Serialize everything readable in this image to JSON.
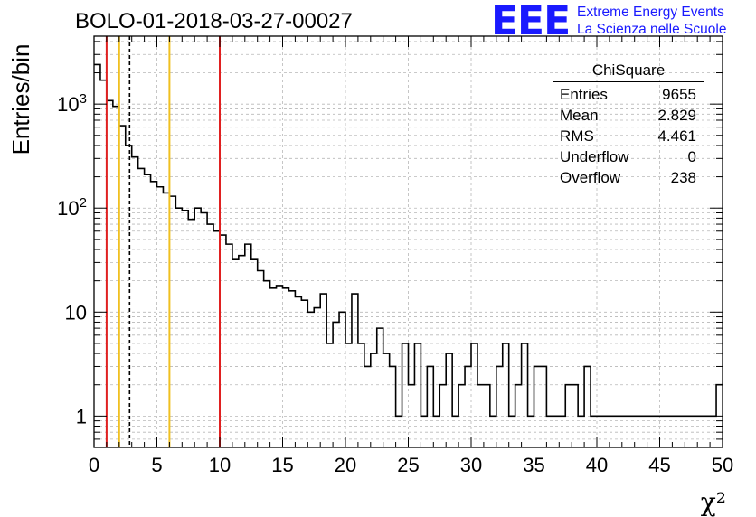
{
  "title": "BOLO-01-2018-03-27-00027",
  "logo": {
    "mark": "EEE",
    "line1": "Extreme Energy Events",
    "line2": "La Scienza nelle Scuole",
    "color": "#1a1aff"
  },
  "stats": {
    "name": "ChiSquare",
    "rows": [
      {
        "label": "Entries",
        "value": "9655"
      },
      {
        "label": "Mean",
        "value": "2.829"
      },
      {
        "label": "RMS",
        "value": "4.461"
      },
      {
        "label": "Underflow",
        "value": "0"
      },
      {
        "label": "Overflow",
        "value": "238"
      }
    ]
  },
  "chart_data": {
    "type": "histogram",
    "title": "BOLO-01-2018-03-27-00027",
    "xlabel": "χ²",
    "ylabel": "Entries/bin",
    "xlim": [
      0,
      50
    ],
    "ylim": [
      0.5,
      4500
    ],
    "yscale": "log",
    "grid": true,
    "bin_width": 0.5,
    "bin_edges_start": 0,
    "x_ticks": [
      0,
      5,
      10,
      15,
      20,
      25,
      30,
      35,
      40,
      45,
      50
    ],
    "y_ticks": [
      {
        "value": 1,
        "label": "1"
      },
      {
        "value": 10,
        "label": "10"
      },
      {
        "value": 100,
        "label": "10²"
      },
      {
        "value": 1000,
        "label": "10³"
      }
    ],
    "counts": [
      2400,
      1700,
      1080,
      950,
      620,
      400,
      310,
      240,
      210,
      180,
      160,
      140,
      130,
      100,
      95,
      78,
      100,
      90,
      70,
      60,
      55,
      45,
      32,
      35,
      45,
      32,
      25,
      20,
      17,
      18,
      17,
      16,
      14,
      13,
      10,
      11,
      15,
      5,
      8,
      10,
      5,
      15,
      5,
      3,
      4,
      7,
      4,
      3,
      1,
      5,
      2,
      5,
      1,
      3,
      1,
      2,
      4,
      1,
      2,
      3,
      5,
      2,
      2,
      1,
      3,
      5,
      1,
      2,
      5,
      1,
      3,
      3,
      1,
      1,
      1,
      2,
      2,
      1,
      3,
      1,
      1,
      1,
      1,
      1,
      1,
      1,
      1,
      1,
      1,
      1,
      1,
      1,
      1,
      1,
      1,
      1,
      1,
      1,
      1,
      2
    ],
    "vertical_lines": [
      {
        "x": 1,
        "color": "#e02020",
        "style": "solid"
      },
      {
        "x": 2,
        "color": "#f0c020",
        "style": "solid"
      },
      {
        "x": 2.829,
        "color": "#000000",
        "style": "dashed"
      },
      {
        "x": 6,
        "color": "#f0c020",
        "style": "solid"
      },
      {
        "x": 10,
        "color": "#e02020",
        "style": "solid"
      }
    ]
  }
}
